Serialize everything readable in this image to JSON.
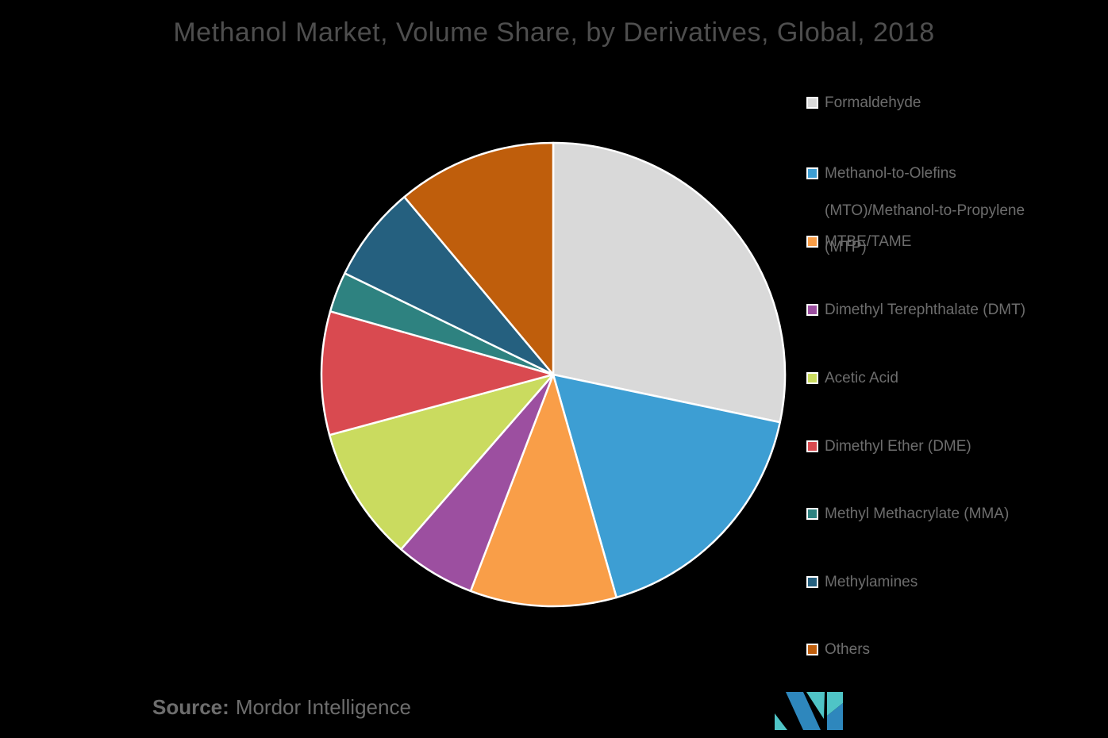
{
  "title": "Methanol Market, Volume Share, by Derivatives, Global, 2018",
  "source": {
    "prefix": "Source:",
    "text": "Mordor Intelligence"
  },
  "colors": {
    "background": "#000000",
    "title_text": "#4e4e4e",
    "legend_text": "#6d6d6d",
    "slice_border": "#ffffff",
    "logo_blue": "#2e87bd",
    "logo_teal": "#4fc4c6"
  },
  "chart_data": {
    "type": "pie",
    "title": "Methanol Market, Volume Share, by Derivatives, Global, 2018",
    "values_are": "estimated percent of total volume share (read from slice angles)",
    "start_angle_deg": 0,
    "direction": "clockwise",
    "legend_position": "right",
    "slices": [
      {
        "label": "Formaldehyde",
        "value": 28.3,
        "color": "#d9d9d9"
      },
      {
        "label": "Methanol-to-Olefins (MTO)/Methanol-to-Propylene (MTP)",
        "value": 17.3,
        "color": "#3d9ed3"
      },
      {
        "label": "MTBE/TAME",
        "value": 10.2,
        "color": "#f99e48"
      },
      {
        "label": "Dimethyl Terephthalate (DMT)",
        "value": 5.6,
        "color": "#9c4fa0"
      },
      {
        "label": "Acetic Acid",
        "value": 9.4,
        "color": "#cadb5f"
      },
      {
        "label": "Dimethyl Ether (DME)",
        "value": 8.6,
        "color": "#d94a50"
      },
      {
        "label": "Methyl Methacrylate (MMA)",
        "value": 2.8,
        "color": "#2e8280"
      },
      {
        "label": "Methylamines",
        "value": 6.7,
        "color": "#25607f"
      },
      {
        "label": "Others",
        "value": 11.1,
        "color": "#bf5e0c"
      }
    ]
  }
}
